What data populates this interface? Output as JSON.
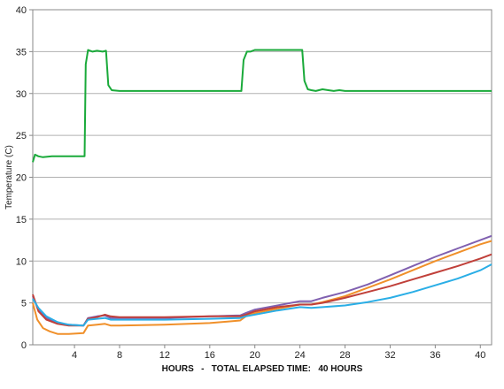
{
  "chart_data": {
    "type": "line",
    "title": "",
    "xlabel": "HOURS   -   TOTAL ELAPSED TIME:   40 HOURS",
    "ylabel": "Temperature (C)",
    "xlim": [
      0.3,
      41
    ],
    "ylim": [
      0,
      40
    ],
    "x_ticks": [
      4,
      8,
      12,
      16,
      20,
      24,
      28,
      32,
      36,
      40
    ],
    "y_ticks": [
      0,
      5,
      10,
      15,
      20,
      25,
      30,
      35,
      40
    ],
    "grid": "horizontal",
    "legend": "none",
    "series": [
      {
        "color": "#1aaa3a",
        "x": [
          0.3,
          0.5,
          0.8,
          1.2,
          2,
          3,
          4,
          4.9,
          5.0,
          5.2,
          5.6,
          6.0,
          6.5,
          6.8,
          7.0,
          7.3,
          8,
          10,
          12,
          14,
          16,
          18,
          18.8,
          19.0,
          19.3,
          19.6,
          20,
          21,
          22,
          23,
          24,
          24.2,
          24.4,
          24.7,
          25,
          25.4,
          26,
          26.5,
          27,
          27.5,
          28,
          29,
          30,
          32,
          34,
          36,
          38,
          40,
          41
        ],
        "y": [
          21.8,
          22.7,
          22.5,
          22.4,
          22.5,
          22.5,
          22.5,
          22.5,
          33.5,
          35.2,
          35.0,
          35.1,
          35.0,
          35.1,
          31.0,
          30.4,
          30.3,
          30.3,
          30.3,
          30.3,
          30.3,
          30.3,
          30.3,
          34.0,
          35.0,
          35.0,
          35.2,
          35.2,
          35.2,
          35.2,
          35.2,
          35.2,
          31.5,
          30.5,
          30.4,
          30.3,
          30.5,
          30.4,
          30.3,
          30.4,
          30.3,
          30.3,
          30.3,
          30.3,
          30.3,
          30.3,
          30.3,
          30.3,
          30.3
        ]
      },
      {
        "color": "#8060b0",
        "x": [
          0.3,
          0.8,
          1.5,
          2.5,
          3.5,
          4.8,
          5.2,
          6,
          6.7,
          7.2,
          8,
          12,
          16,
          18.7,
          19.2,
          20,
          22,
          24,
          25,
          26,
          28,
          30,
          32,
          34,
          36,
          38,
          40,
          41
        ],
        "y": [
          5.8,
          4.2,
          3.2,
          2.6,
          2.4,
          2.3,
          3.2,
          3.4,
          3.5,
          3.2,
          3.2,
          3.2,
          3.4,
          3.5,
          3.8,
          4.2,
          4.7,
          5.2,
          5.2,
          5.6,
          6.3,
          7.2,
          8.3,
          9.4,
          10.5,
          11.5,
          12.5,
          13.0
        ]
      },
      {
        "color": "#f0902a",
        "x": [
          0.3,
          0.7,
          1.2,
          1.8,
          2.5,
          3.5,
          4.8,
          5.2,
          6,
          6.7,
          7.2,
          8,
          12,
          16,
          18.7,
          19.2,
          20,
          22,
          24,
          25,
          26,
          28,
          30,
          32,
          34,
          36,
          38,
          40,
          41
        ],
        "y": [
          5.0,
          3.0,
          2.0,
          1.6,
          1.3,
          1.3,
          1.4,
          2.3,
          2.4,
          2.5,
          2.3,
          2.3,
          2.4,
          2.6,
          2.9,
          3.4,
          3.8,
          4.3,
          4.8,
          4.8,
          5.1,
          5.8,
          6.8,
          7.8,
          8.9,
          10.0,
          11.0,
          12.0,
          12.4
        ]
      },
      {
        "color": "#c0403a",
        "x": [
          0.3,
          0.8,
          1.5,
          2.5,
          3.5,
          4.8,
          5.2,
          6,
          6.7,
          7.2,
          8,
          12,
          16,
          18.7,
          19.2,
          20,
          22,
          24,
          25,
          26,
          28,
          30,
          32,
          34,
          36,
          38,
          40,
          41
        ],
        "y": [
          6.0,
          4.0,
          3.0,
          2.5,
          2.3,
          2.3,
          3.1,
          3.3,
          3.6,
          3.4,
          3.3,
          3.3,
          3.4,
          3.4,
          3.6,
          4.0,
          4.5,
          4.8,
          4.8,
          5.0,
          5.6,
          6.3,
          7.0,
          7.8,
          8.6,
          9.4,
          10.3,
          10.8
        ]
      },
      {
        "color": "#2aaee6",
        "x": [
          0.3,
          0.8,
          1.5,
          2.5,
          3.5,
          4.8,
          5.2,
          6,
          6.7,
          7.2,
          8,
          12,
          16,
          18.7,
          19.2,
          20,
          22,
          24,
          25,
          26,
          28,
          30,
          32,
          34,
          36,
          38,
          40,
          41
        ],
        "y": [
          5.5,
          4.4,
          3.4,
          2.7,
          2.4,
          2.3,
          3.0,
          3.1,
          3.2,
          3.0,
          3.0,
          3.0,
          3.1,
          3.2,
          3.4,
          3.6,
          4.1,
          4.5,
          4.4,
          4.5,
          4.7,
          5.1,
          5.6,
          6.3,
          7.1,
          7.9,
          8.9,
          9.6
        ]
      }
    ]
  }
}
